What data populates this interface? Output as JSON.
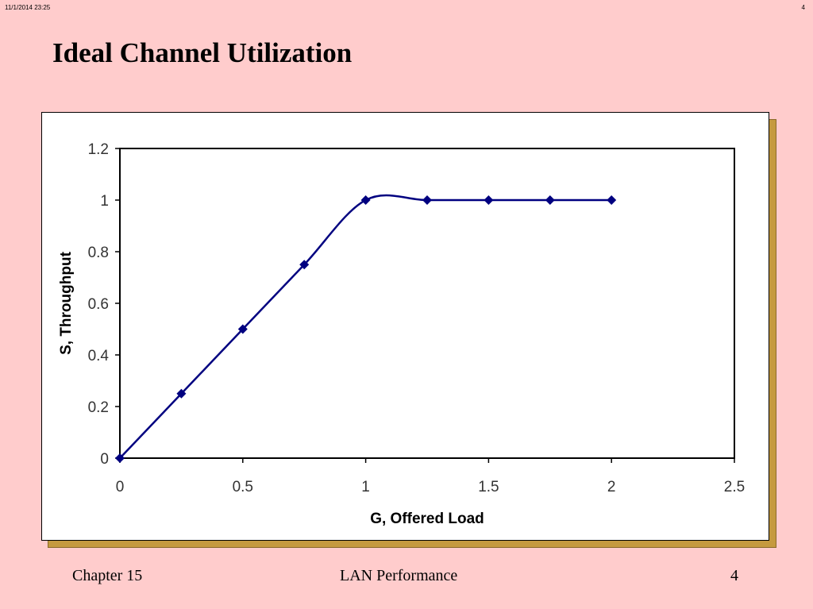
{
  "header": {
    "datetime": "11/1/2014  23:25",
    "page": "4"
  },
  "slide": {
    "title": "Ideal Channel Utilization"
  },
  "footer": {
    "left": "Chapter 15",
    "center": "LAN Performance",
    "right": "4"
  },
  "chart_data": {
    "type": "line",
    "title": "",
    "xlabel": "G, Offered Load",
    "ylabel": "S, Throughput",
    "xlim": [
      0,
      2.5
    ],
    "ylim": [
      0,
      1.2
    ],
    "xticks": [
      0,
      0.5,
      1,
      1.5,
      2,
      2.5
    ],
    "xtick_labels": [
      "0",
      "0.5",
      "1",
      "1.5",
      "2",
      "2.5"
    ],
    "yticks": [
      0,
      0.2,
      0.4,
      0.6,
      0.8,
      1,
      1.2
    ],
    "ytick_labels": [
      "0",
      "0.2",
      "0.4",
      "0.6",
      "0.8",
      "1",
      "1.2"
    ],
    "grid": false,
    "legend": "none",
    "colors": {
      "series": "#000080",
      "axes": "#000000"
    },
    "series": [
      {
        "marker": "diamond",
        "x": [
          0,
          0.25,
          0.5,
          0.75,
          1,
          1.25,
          1.5,
          1.75,
          2
        ],
        "y": [
          0,
          0.25,
          0.5,
          0.75,
          1,
          1,
          1,
          1,
          1
        ]
      }
    ]
  }
}
